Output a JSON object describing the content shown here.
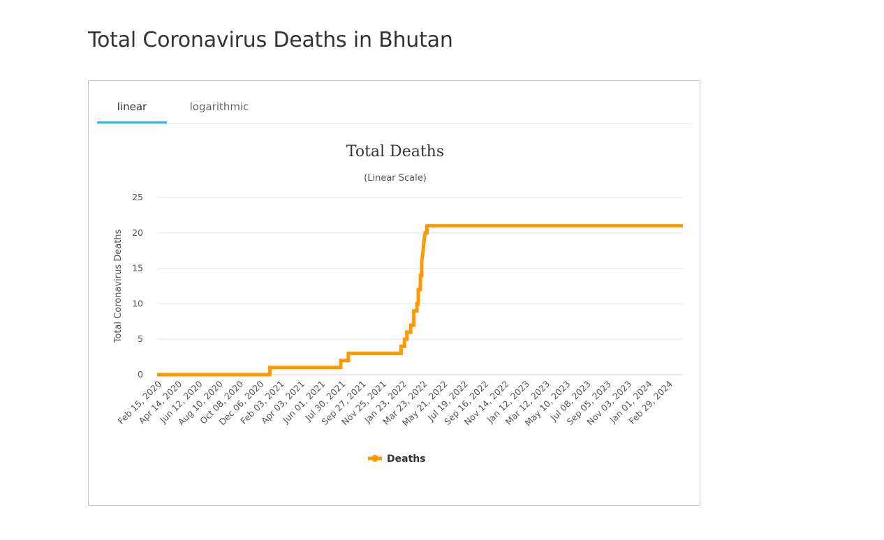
{
  "page": {
    "title": "Total Coronavirus Deaths in Bhutan"
  },
  "tabs": [
    {
      "label": "linear",
      "active": true
    },
    {
      "label": "logarithmic",
      "active": false
    }
  ],
  "chart_data": {
    "type": "line",
    "title": "Total Deaths",
    "subtitle": "(Linear Scale)",
    "ylabel": "Total Coronavirus Deaths",
    "xlabel": "",
    "ylim": [
      0,
      25
    ],
    "yticks": [
      0,
      5,
      10,
      15,
      20,
      25
    ],
    "grid": true,
    "legend_position": "bottom-center",
    "series_color": "#ff9900",
    "xlim": [
      "2020-02-15",
      "2024-04-20"
    ],
    "x_tick_labels": [
      "Feb 15, 2020",
      "Apr 14, 2020",
      "Jun 12, 2020",
      "Aug 10, 2020",
      "Oct 08, 2020",
      "Dec 06, 2020",
      "Feb 03, 2021",
      "Apr 03, 2021",
      "Jun 01, 2021",
      "Jul 30, 2021",
      "Sep 27, 2021",
      "Nov 25, 2021",
      "Jan 23, 2022",
      "Mar 23, 2022",
      "May 21, 2022",
      "Jul 19, 2022",
      "Sep 16, 2022",
      "Nov 14, 2022",
      "Jan 12, 2023",
      "Mar 12, 2023",
      "May 10, 2023",
      "Jul 08, 2023",
      "Sep 05, 2023",
      "Nov 03, 2023",
      "Jan 01, 2024",
      "Feb 29, 2024"
    ],
    "series": [
      {
        "name": "Deaths",
        "points": [
          [
            "2020-02-15",
            0
          ],
          [
            "2021-01-07",
            0
          ],
          [
            "2021-01-07",
            1
          ],
          [
            "2021-08-01",
            1
          ],
          [
            "2021-08-01",
            2
          ],
          [
            "2021-08-23",
            2
          ],
          [
            "2021-08-23",
            3
          ],
          [
            "2022-01-23",
            3
          ],
          [
            "2022-01-23",
            4
          ],
          [
            "2022-02-02",
            4
          ],
          [
            "2022-02-02",
            5
          ],
          [
            "2022-02-09",
            5
          ],
          [
            "2022-02-09",
            6
          ],
          [
            "2022-02-20",
            6
          ],
          [
            "2022-02-20",
            7
          ],
          [
            "2022-03-01",
            7
          ],
          [
            "2022-03-01",
            9
          ],
          [
            "2022-03-10",
            9
          ],
          [
            "2022-03-10",
            10
          ],
          [
            "2022-03-14",
            10
          ],
          [
            "2022-03-14",
            12
          ],
          [
            "2022-03-20",
            12
          ],
          [
            "2022-03-20",
            14
          ],
          [
            "2022-03-24",
            14
          ],
          [
            "2022-03-24",
            16
          ],
          [
            "2022-03-27",
            17
          ],
          [
            "2022-03-29",
            18
          ],
          [
            "2022-03-31",
            19
          ],
          [
            "2022-04-03",
            20
          ],
          [
            "2022-04-08",
            20
          ],
          [
            "2022-04-08",
            21
          ],
          [
            "2024-04-20",
            21
          ]
        ]
      }
    ]
  }
}
